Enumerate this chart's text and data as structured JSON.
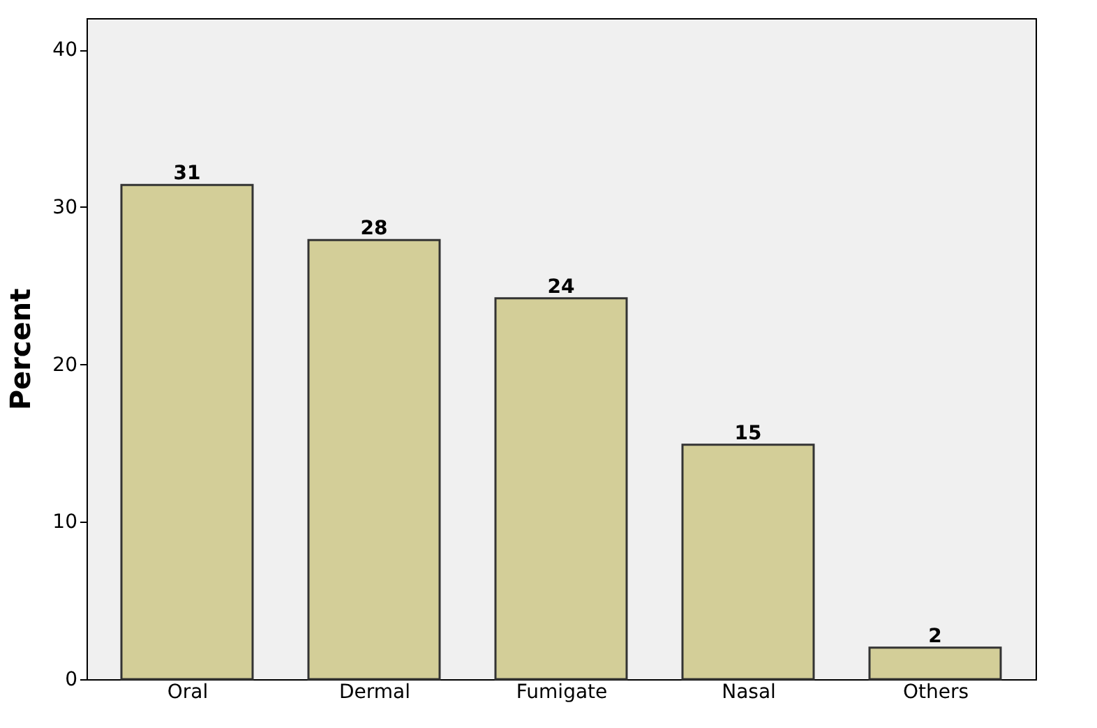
{
  "chart_data": {
    "type": "bar",
    "ylabel": "Percent",
    "categories": [
      "Oral",
      "Dermal",
      "Fumigate",
      "Nasal",
      "Others"
    ],
    "values": [
      31.4,
      27.9,
      24.2,
      14.9,
      2.0
    ],
    "value_labels": [
      "31",
      "28",
      "24",
      "15",
      "2"
    ],
    "color": "#d3ce98",
    "ylim": [
      0,
      42
    ],
    "yticks": [
      0,
      10,
      20,
      30,
      40
    ],
    "grid": false
  }
}
